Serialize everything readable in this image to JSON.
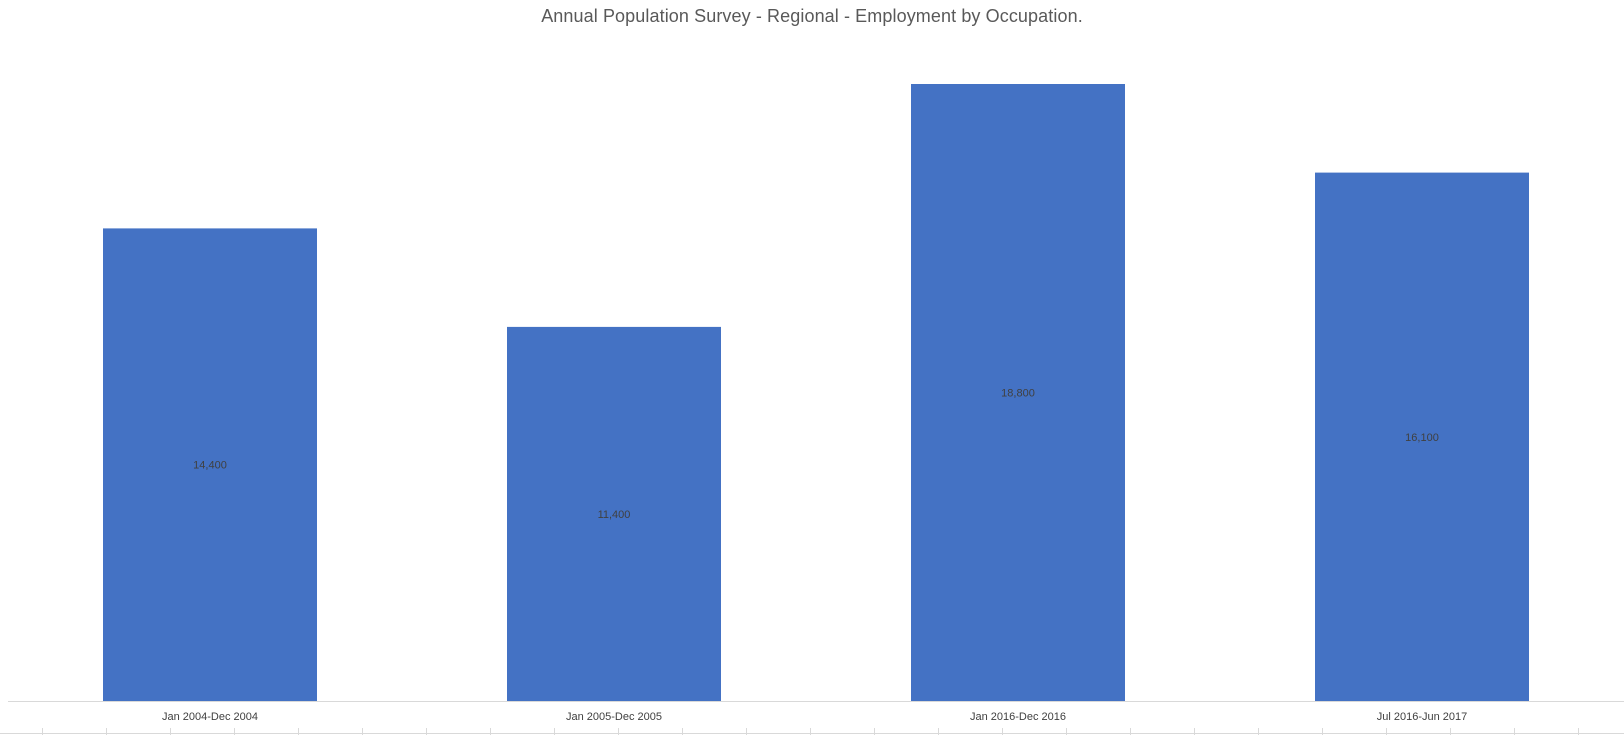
{
  "chart_data": {
    "type": "bar",
    "title": "Annual Population Survey - Regional - Employment by Occupation.",
    "categories": [
      "Jan 2004-Dec 2004",
      "Jan 2005-Dec 2005",
      "Jan 2016-Dec 2016",
      "Jul 2016-Jun 2017"
    ],
    "values": [
      14400,
      11400,
      18800,
      16100
    ],
    "value_labels": [
      "14,400",
      "11,400",
      "18,800",
      "16,100"
    ],
    "xlabel": "",
    "ylabel": "",
    "ylim": [
      0,
      20000
    ],
    "grid": false,
    "legend": "none",
    "colors": {
      "bar": "#4472c4",
      "data_label": "#404040",
      "tick_label": "#404040",
      "axis_line": "#d9d9d9",
      "title": "#595959"
    }
  }
}
